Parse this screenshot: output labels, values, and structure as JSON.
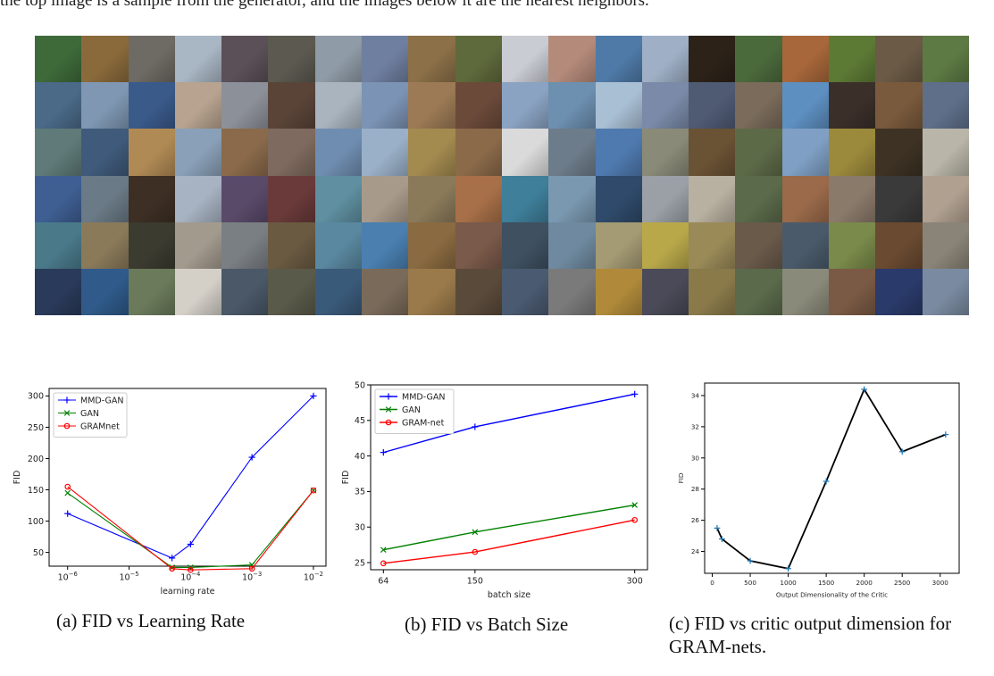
{
  "top_caption": "the top image is a sample from the generator, and the images below it are the nearest neighbors.",
  "image_grid": {
    "columns": 20,
    "rows": 6,
    "tile_colors": [
      "#3e6a3a",
      "#8a6a3b",
      "#6e6a64",
      "#a9b6c4",
      "#5b5058",
      "#5c5a50",
      "#8f9ba6",
      "#6f7fa0",
      "#8b7048",
      "#5f6a3c",
      "#c9ccd3",
      "#b48a7a",
      "#4f7aa8",
      "#9fb0c6",
      "#2c2218",
      "#4b6a3c",
      "#a7673a",
      "#5d7a35",
      "#6b5a46",
      "#5e7a44",
      "#4a6a88",
      "#7f97b3",
      "#3a5a8a",
      "#b7a38f",
      "#8c9098",
      "#5a4438",
      "#a9b4bf",
      "#7b93b4",
      "#9c7a55",
      "#6b4a3a",
      "#8aa3c2",
      "#6d8fb0",
      "#a9bfd4",
      "#7a8aa8",
      "#4f5a73",
      "#7a6b5a",
      "#5d8fc1",
      "#3b2f29",
      "#7a5a3c",
      "#5f6f8a",
      "#5f7a78",
      "#3f5a7a",
      "#b08a55",
      "#8aa0b8",
      "#8a6a4a",
      "#7e6a5e",
      "#6f8db0",
      "#9ab0c8",
      "#a38a4f",
      "#8b6a4a",
      "#dadada",
      "#6d7c8a",
      "#4f7ab0",
      "#8a8a78",
      "#6a5234",
      "#5d6a48",
      "#7f9fc4",
      "#9c8a3c",
      "#3d3224",
      "#b9b5a8",
      "#3f5f93",
      "#6a7a86",
      "#3d2f24",
      "#a7b2c2",
      "#5a4a6a",
      "#6a3a3a",
      "#5f8fa0",
      "#a89a8a",
      "#8a7a5a",
      "#a87048",
      "#3f7f9a",
      "#7a98b0",
      "#2f4a6a",
      "#9aa0a6",
      "#b8b0a0",
      "#5a6a4a",
      "#9a6a4a",
      "#8a7a6a",
      "#3a3a3a",
      "#b0a090",
      "#4a7a8a",
      "#8a7a5a",
      "#3b3b30",
      "#a39a8e",
      "#7a7f84",
      "#6a5a42",
      "#5a88a0",
      "#4a7fb0",
      "#8a6a40",
      "#7a5a4a",
      "#3f5060",
      "#6f8aa0",
      "#a49a74",
      "#b9a84a",
      "#9a8a58",
      "#6a5a4a",
      "#4a5a6a",
      "#7a8a4a",
      "#6a4a30",
      "#8a8478",
      "#2a3a5a",
      "#2f5a8a",
      "#6a7a5a",
      "#d4d0c8",
      "#4a5868",
      "#5a5a4a",
      "#3a5a7a",
      "#7a6a5a",
      "#9a7a4a",
      "#5a4a3a",
      "#4a5a70",
      "#7a7a7a",
      "#b08a3a",
      "#4a4a58",
      "#8a7a4a",
      "#5a6a4a",
      "#8a8a7a",
      "#7a5a44",
      "#2a3a6a",
      "#7a8aa0"
    ]
  },
  "panel_a": {
    "chart_data": {
      "type": "line",
      "xlabel": "learning rate",
      "ylabel": "FID",
      "x_scale": "log",
      "x_ticks": [
        {
          "value": 1e-06,
          "base": "10",
          "exp": "−6"
        },
        {
          "value": 1e-05,
          "base": "10",
          "exp": "−5"
        },
        {
          "value": 0.0001,
          "base": "10",
          "exp": "−4"
        },
        {
          "value": 0.001,
          "base": "10",
          "exp": "−3"
        },
        {
          "value": 0.01,
          "base": "10",
          "exp": "−2"
        }
      ],
      "y_ticks": [
        "50",
        "100",
        "150",
        "200",
        "250",
        "300"
      ],
      "xlim": [
        5e-07,
        0.016
      ],
      "ylim": [
        28,
        312
      ],
      "legend": "top-left",
      "x": [
        1e-06,
        5e-05,
        0.0001,
        0.001,
        0.01
      ],
      "series": [
        {
          "name": "MMD-GAN",
          "color": "#0000ff",
          "marker": "+",
          "values": [
            112,
            41,
            63,
            202,
            300
          ]
        },
        {
          "name": "GAN",
          "color": "#008000",
          "marker": "x",
          "values": [
            145,
            26,
            26,
            30,
            149
          ]
        },
        {
          "name": "GRAMnet",
          "color": "#ff0000",
          "marker": "o",
          "values": [
            155,
            24,
            22,
            24,
            149
          ]
        }
      ]
    }
  },
  "panel_b": {
    "chart_data": {
      "type": "line",
      "xlabel": "batch size",
      "ylabel": "FID",
      "x_ticks": [
        "64",
        "150",
        "300"
      ],
      "y_ticks": [
        "25",
        "30",
        "35",
        "40",
        "45",
        "50"
      ],
      "xlim": [
        52,
        312
      ],
      "ylim": [
        24,
        50
      ],
      "legend": "top-left",
      "x": [
        64,
        150,
        300
      ],
      "series": [
        {
          "name": "MMD-GAN",
          "color": "#0000ff",
          "marker": "+",
          "values": [
            40.5,
            44.1,
            48.7
          ]
        },
        {
          "name": "GAN",
          "color": "#008000",
          "marker": "x",
          "values": [
            26.8,
            29.3,
            33.1
          ]
        },
        {
          "name": "GRAM-net",
          "color": "#ff0000",
          "marker": "o",
          "values": [
            24.9,
            26.5,
            31.0
          ]
        }
      ]
    }
  },
  "panel_c": {
    "chart_data": {
      "type": "line",
      "xlabel": "Output Dimensionality of the Critic",
      "ylabel": "FID",
      "x_ticks": [
        "0",
        "500",
        "1000",
        "1500",
        "2000",
        "2500",
        "3000"
      ],
      "y_ticks": [
        "24",
        "26",
        "28",
        "30",
        "32",
        "34"
      ],
      "xlim": [
        -100,
        3250
      ],
      "ylim": [
        22.6,
        34.8
      ],
      "x": [
        64,
        128,
        500,
        1000,
        1500,
        2000,
        2500,
        3072
      ],
      "series": [
        {
          "name": "",
          "color": "#000000",
          "marker": "+",
          "marker_color": "#1f77b4",
          "values": [
            25.5,
            24.8,
            23.4,
            22.9,
            28.5,
            34.4,
            30.4,
            31.5
          ]
        }
      ]
    }
  },
  "captions": {
    "a": "(a) FID vs Learning Rate",
    "b": "(b) FID vs Batch Size",
    "c": "(c) FID vs critic output dimension for GRAM-nets."
  }
}
